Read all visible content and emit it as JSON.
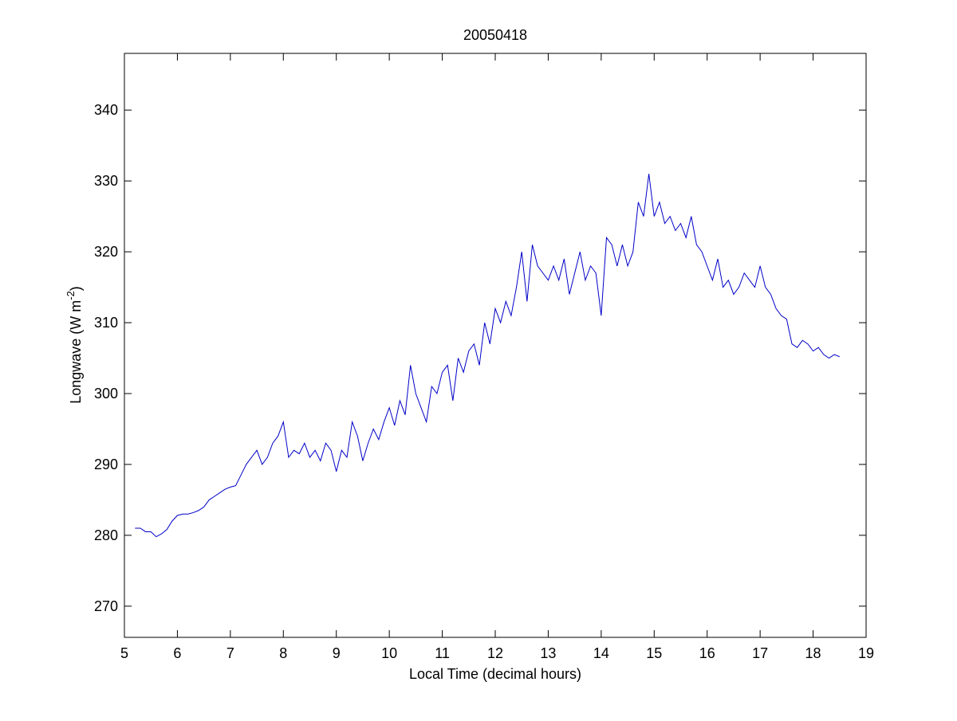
{
  "chart_data": {
    "type": "line",
    "title": "20050418",
    "xlabel": "Local Time (decimal hours)",
    "ylabel": {
      "text": "Longwave (W m",
      "superscript": "-2",
      "suffix": ")"
    },
    "xlim": [
      5,
      19
    ],
    "xticks": [
      5,
      6,
      7,
      8,
      9,
      10,
      11,
      12,
      13,
      14,
      15,
      16,
      17,
      18,
      19
    ],
    "ylim": [
      265.6,
      348
    ],
    "yticks": [
      270,
      280,
      290,
      300,
      310,
      320,
      330,
      340
    ],
    "grid": false,
    "series": [
      {
        "color": "#0000c8",
        "x": [
          5.2,
          5.3,
          5.4,
          5.5,
          5.6,
          5.7,
          5.8,
          5.9,
          6.0,
          6.1,
          6.2,
          6.3,
          6.4,
          6.5,
          6.6,
          6.7,
          6.8,
          6.9,
          7.0,
          7.1,
          7.2,
          7.3,
          7.4,
          7.5,
          7.6,
          7.7,
          7.8,
          7.9,
          8.0,
          8.1,
          8.2,
          8.3,
          8.4,
          8.5,
          8.6,
          8.7,
          8.8,
          8.9,
          9.0,
          9.1,
          9.2,
          9.3,
          9.4,
          9.5,
          9.6,
          9.7,
          9.8,
          9.9,
          10.0,
          10.1,
          10.2,
          10.3,
          10.4,
          10.5,
          10.6,
          10.7,
          10.8,
          10.9,
          11.0,
          11.1,
          11.2,
          11.3,
          11.4,
          11.5,
          11.6,
          11.7,
          11.8,
          11.9,
          12.0,
          12.1,
          12.2,
          12.3,
          12.4,
          12.5,
          12.6,
          12.7,
          12.8,
          12.9,
          13.0,
          13.1,
          13.2,
          13.3,
          13.4,
          13.5,
          13.6,
          13.7,
          13.8,
          13.9,
          14.0,
          14.1,
          14.2,
          14.3,
          14.4,
          14.5,
          14.6,
          14.7,
          14.8,
          14.9,
          15.0,
          15.1,
          15.2,
          15.3,
          15.4,
          15.5,
          15.6,
          15.7,
          15.8,
          15.9,
          16.0,
          16.1,
          16.2,
          16.3,
          16.4,
          16.5,
          16.6,
          16.7,
          16.8,
          16.9,
          17.0,
          17.1,
          17.2,
          17.3,
          17.4,
          17.5,
          17.6,
          17.7,
          17.8,
          17.9,
          18.0,
          18.1,
          18.2,
          18.3,
          18.4,
          18.5
        ],
        "values": [
          281,
          281,
          280.5,
          280.5,
          279.8,
          280.2,
          280.8,
          282,
          282.8,
          283,
          283,
          283.2,
          283.5,
          284,
          285,
          285.5,
          286,
          286.5,
          286.8,
          287,
          288.5,
          290,
          291,
          292,
          290,
          291,
          293,
          294,
          296,
          291,
          292,
          291.5,
          293,
          291,
          292,
          290.5,
          293,
          292,
          289,
          292,
          291,
          296,
          294,
          290.5,
          293,
          295,
          293.5,
          296,
          298,
          295.5,
          299,
          297,
          304,
          300,
          298,
          296,
          301,
          300,
          303,
          304,
          299,
          305,
          303,
          306,
          307,
          304,
          310,
          307,
          312,
          310,
          313,
          311,
          315,
          320,
          313,
          321,
          318,
          317,
          316,
          318,
          316,
          319,
          314,
          317,
          320,
          316,
          318,
          317,
          311,
          322,
          321,
          318,
          321,
          318,
          320,
          327,
          325,
          331,
          325,
          327,
          324,
          325,
          323,
          324,
          322,
          325,
          321,
          320,
          318,
          316,
          319,
          315,
          316,
          314,
          315,
          317,
          316,
          315,
          318,
          315,
          314,
          312,
          311,
          310.5,
          307,
          306.5,
          307.5,
          307,
          306,
          306.5,
          305.5,
          305,
          305.5,
          305.2
        ]
      }
    ]
  }
}
